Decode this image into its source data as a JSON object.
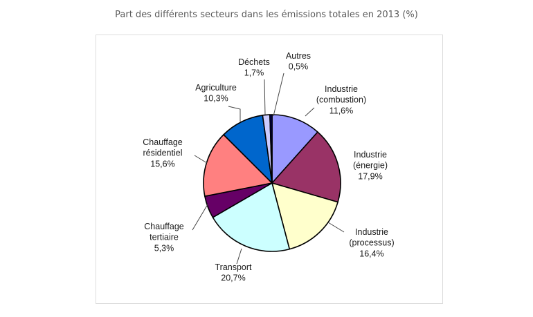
{
  "title": "Part des différents secteurs dans les émissions totales en 2013 (%)",
  "chart_data": {
    "type": "pie",
    "title": "Part des différents secteurs dans les émissions totales en 2013 (%)",
    "slices": [
      {
        "label_lines": [
          "Industrie",
          "(combustion)"
        ],
        "value": 11.6,
        "value_text": "11,6%",
        "color": "#9999ff"
      },
      {
        "label_lines": [
          "Industrie",
          "(énergie)"
        ],
        "value": 17.9,
        "value_text": "17,9%",
        "color": "#993366"
      },
      {
        "label_lines": [
          "Industrie",
          "(processus)"
        ],
        "value": 16.4,
        "value_text": "16,4%",
        "color": "#ffffcc"
      },
      {
        "label_lines": [
          "Transport"
        ],
        "value": 20.7,
        "value_text": "20,7%",
        "color": "#ccffff"
      },
      {
        "label_lines": [
          "Chauffage",
          "tertiaire"
        ],
        "value": 5.3,
        "value_text": "5,3%",
        "color": "#660066"
      },
      {
        "label_lines": [
          "Chauffage",
          "résidentiel"
        ],
        "value": 15.6,
        "value_text": "15,6%",
        "color": "#ff8080"
      },
      {
        "label_lines": [
          "Agriculture"
        ],
        "value": 10.3,
        "value_text": "10,3%",
        "color": "#0066cc"
      },
      {
        "label_lines": [
          "Déchets"
        ],
        "value": 1.7,
        "value_text": "1,7%",
        "color": "#ccccff"
      },
      {
        "label_lines": [
          "Autres"
        ],
        "value": 0.5,
        "value_text": "0,5%",
        "color": "#000080"
      }
    ]
  }
}
